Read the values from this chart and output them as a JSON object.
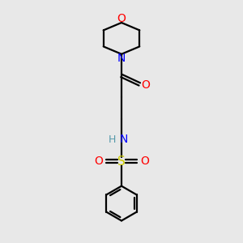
{
  "bg_color": "#e8e8e8",
  "bond_color": "#000000",
  "o_color": "#ff0000",
  "n_color": "#0000ff",
  "s_color": "#cccc00",
  "h_color": "#5599aa",
  "line_width": 1.6,
  "fig_size": [
    3.0,
    3.0
  ],
  "dpi": 100,
  "xlim": [
    0,
    10
  ],
  "ylim": [
    0,
    10
  ]
}
